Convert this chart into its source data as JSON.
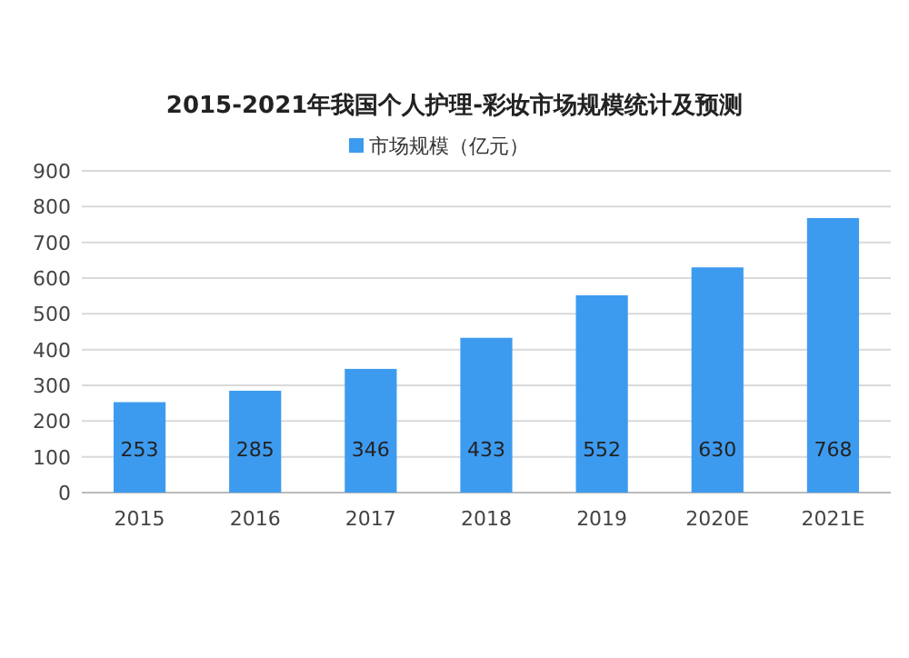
{
  "chart_data": {
    "type": "bar",
    "title": "2015-2021年我国个人护理-彩妆市场规模统计及预测",
    "categories": [
      "2015",
      "2016",
      "2017",
      "2018",
      "2019",
      "2020E",
      "2021E"
    ],
    "series": [
      {
        "name": "市场规模（亿元）",
        "color": "#3d9bef",
        "values": [
          253,
          285,
          346,
          433,
          552,
          630,
          768
        ]
      }
    ],
    "ylim": [
      0,
      900
    ],
    "yticks": [
      0,
      100,
      200,
      300,
      400,
      500,
      600,
      700,
      800,
      900
    ],
    "grid": "y",
    "legend": "top",
    "data_labels": true
  }
}
